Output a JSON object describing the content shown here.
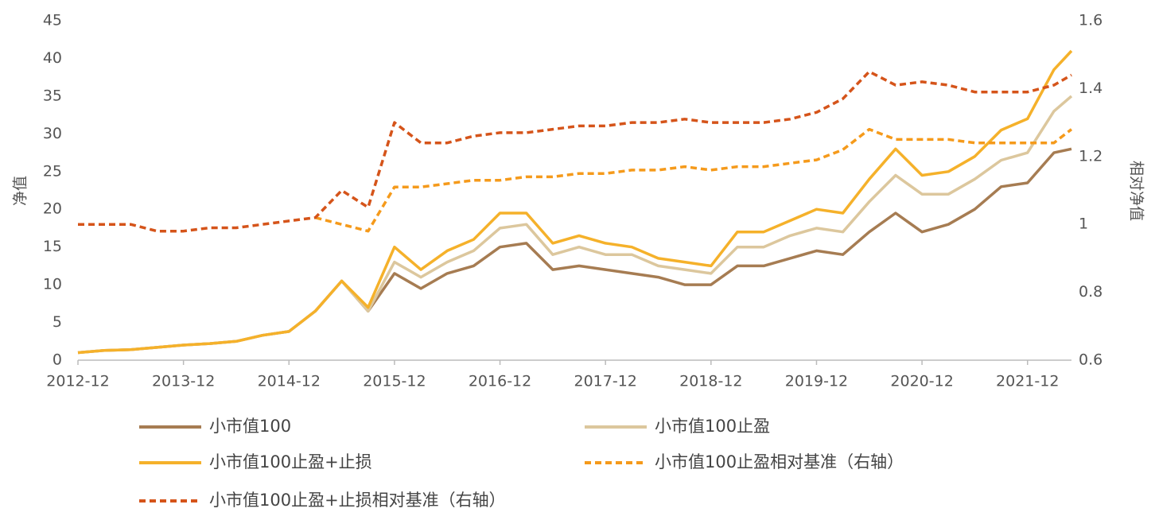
{
  "chart_data": {
    "type": "line",
    "ylabel": "净值",
    "y2label": "相对净值",
    "x": [
      "2012-12",
      "2013-03",
      "2013-06",
      "2013-09",
      "2013-12",
      "2014-03",
      "2014-06",
      "2014-09",
      "2014-12",
      "2015-03",
      "2015-06",
      "2015-09",
      "2015-12",
      "2016-03",
      "2016-06",
      "2016-09",
      "2016-12",
      "2017-03",
      "2017-06",
      "2017-09",
      "2017-12",
      "2018-03",
      "2018-06",
      "2018-09",
      "2018-12",
      "2019-03",
      "2019-06",
      "2019-09",
      "2019-12",
      "2020-03",
      "2020-06",
      "2020-09",
      "2020-12",
      "2021-03",
      "2021-06",
      "2021-09",
      "2021-12",
      "2022-03",
      "2022-05"
    ],
    "xlim": [
      "2012-12",
      "2022-05"
    ],
    "xticks": [
      "2012-12",
      "2013-12",
      "2014-12",
      "2015-12",
      "2016-12",
      "2017-12",
      "2018-12",
      "2019-12",
      "2020-12",
      "2021-12"
    ],
    "ylim": [
      0,
      45
    ],
    "yticks": [
      0,
      5,
      10,
      15,
      20,
      25,
      30,
      35,
      40,
      45
    ],
    "y2lim": [
      0.6,
      1.6
    ],
    "y2ticks": [
      0.6,
      0.8,
      1,
      1.2,
      1.4,
      1.6
    ],
    "series": [
      {
        "name": "小市值100",
        "color": "#a67c52",
        "dashed": false,
        "values": [
          1.0,
          1.3,
          1.4,
          1.7,
          2.0,
          2.2,
          2.5,
          3.3,
          3.8,
          6.5,
          10.5,
          6.5,
          11.5,
          9.5,
          11.5,
          12.5,
          15.0,
          15.5,
          12.0,
          12.5,
          12.0,
          11.5,
          11.0,
          10.0,
          10.0,
          12.5,
          12.5,
          13.5,
          14.5,
          14.0,
          17.0,
          19.5,
          17.0,
          18.0,
          20.0,
          23.0,
          23.5,
          27.5,
          28.0
        ]
      },
      {
        "name": "小市值100止盈",
        "color": "#dcc79d",
        "dashed": false,
        "values": [
          1.0,
          1.3,
          1.4,
          1.7,
          2.0,
          2.2,
          2.5,
          3.3,
          3.8,
          6.5,
          10.5,
          6.5,
          13.0,
          11.0,
          13.0,
          14.5,
          17.5,
          18.0,
          14.0,
          15.0,
          14.0,
          14.0,
          12.5,
          12.0,
          11.5,
          15.0,
          15.0,
          16.5,
          17.5,
          17.0,
          21.0,
          24.5,
          22.0,
          22.0,
          24.0,
          26.5,
          27.5,
          33.0,
          35.0
        ]
      },
      {
        "name": "小市值100止盈+止损",
        "color": "#f5b12a",
        "dashed": false,
        "values": [
          1.0,
          1.3,
          1.4,
          1.7,
          2.0,
          2.2,
          2.5,
          3.3,
          3.8,
          6.5,
          10.5,
          7.0,
          15.0,
          12.0,
          14.5,
          16.0,
          19.5,
          19.5,
          15.5,
          16.5,
          15.5,
          15.0,
          13.5,
          13.0,
          12.5,
          17.0,
          17.0,
          18.5,
          20.0,
          19.5,
          24.0,
          28.0,
          24.5,
          25.0,
          27.0,
          30.5,
          32.0,
          38.5,
          41.0
        ]
      },
      {
        "name": "小市值100止盈相对基准（右轴）",
        "color": "#f59a1b",
        "dashed": true,
        "axis": "y2",
        "values": [
          null,
          null,
          null,
          null,
          null,
          null,
          null,
          null,
          null,
          1.02,
          1.0,
          0.98,
          1.11,
          1.11,
          1.12,
          1.13,
          1.13,
          1.14,
          1.14,
          1.15,
          1.15,
          1.16,
          1.16,
          1.17,
          1.16,
          1.17,
          1.17,
          1.18,
          1.19,
          1.22,
          1.28,
          1.25,
          1.25,
          1.25,
          1.24,
          1.24,
          1.24,
          1.24,
          1.28
        ]
      },
      {
        "name": "小市值100止盈+止损相对基准（右轴）",
        "color": "#d5541a",
        "dashed": true,
        "axis": "y2",
        "values": [
          1.0,
          1.0,
          1.0,
          0.98,
          0.98,
          0.99,
          0.99,
          1.0,
          1.01,
          1.02,
          1.1,
          1.05,
          1.3,
          1.24,
          1.24,
          1.26,
          1.27,
          1.27,
          1.28,
          1.29,
          1.29,
          1.3,
          1.3,
          1.31,
          1.3,
          1.3,
          1.3,
          1.31,
          1.33,
          1.37,
          1.45,
          1.41,
          1.42,
          1.41,
          1.39,
          1.39,
          1.39,
          1.41,
          1.44
        ]
      }
    ]
  }
}
